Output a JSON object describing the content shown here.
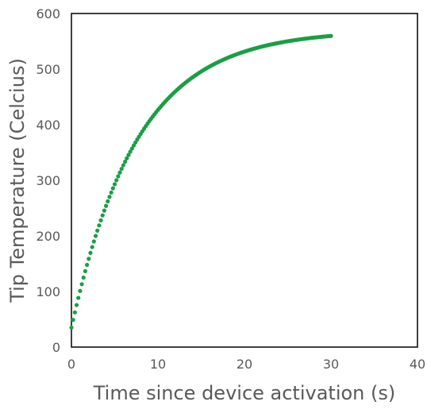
{
  "chart_data": {
    "type": "scatter",
    "title": "",
    "xlabel": "Time since device activation (s)",
    "ylabel": "Tip Temperature (Celcius)",
    "xlim": [
      0,
      40
    ],
    "ylim": [
      0,
      600
    ],
    "xticks": [
      0,
      10,
      20,
      30,
      40
    ],
    "yticks": [
      0,
      100,
      200,
      300,
      400,
      500,
      600
    ],
    "grid": false,
    "legend": "none",
    "series": [
      {
        "color": "#1a9e45",
        "model": "T = 35 + 535 * (1 - exp(-t / 7.6))",
        "x_start": 0,
        "x_end": 30,
        "x_step": 0.2
      }
    ]
  }
}
